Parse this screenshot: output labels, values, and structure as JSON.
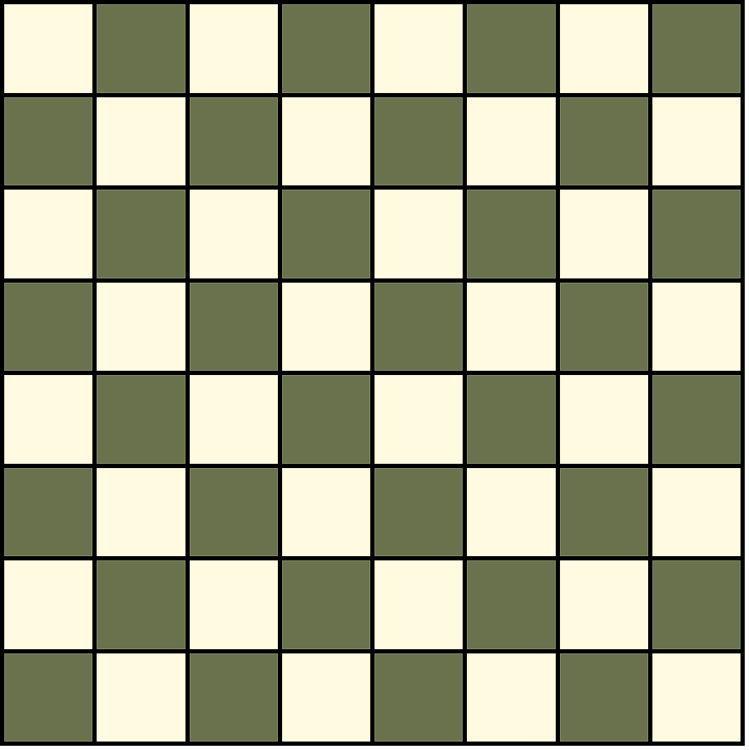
{
  "board": {
    "rows": 8,
    "cols": 8,
    "top_left_color": "light",
    "colors": {
      "light": "#fffae0",
      "dark": "#69714d",
      "grid_lines": "#000000"
    },
    "pieces": []
  }
}
